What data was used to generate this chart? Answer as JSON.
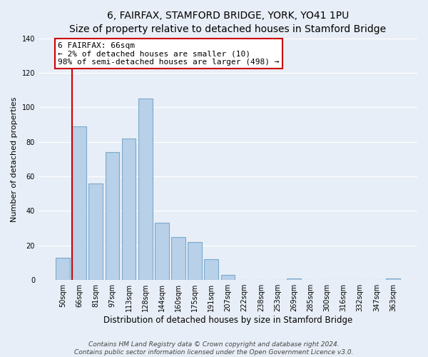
{
  "title": "6, FAIRFAX, STAMFORD BRIDGE, YORK, YO41 1PU",
  "subtitle": "Size of property relative to detached houses in Stamford Bridge",
  "xlabel": "Distribution of detached houses by size in Stamford Bridge",
  "ylabel": "Number of detached properties",
  "bar_labels": [
    "50sqm",
    "66sqm",
    "81sqm",
    "97sqm",
    "113sqm",
    "128sqm",
    "144sqm",
    "160sqm",
    "175sqm",
    "191sqm",
    "207sqm",
    "222sqm",
    "238sqm",
    "253sqm",
    "269sqm",
    "285sqm",
    "300sqm",
    "316sqm",
    "332sqm",
    "347sqm",
    "363sqm"
  ],
  "bar_heights": [
    13,
    89,
    56,
    74,
    82,
    105,
    33,
    25,
    22,
    12,
    3,
    0,
    0,
    0,
    1,
    0,
    0,
    0,
    0,
    0,
    1
  ],
  "bar_color": "#b8d0e8",
  "bar_edge_color": "#7aaace",
  "vline_x": 1,
  "vline_color": "#cc0000",
  "annotation_text": "6 FAIRFAX: 66sqm\n← 2% of detached houses are smaller (10)\n98% of semi-detached houses are larger (498) →",
  "annotation_box_color": "#ffffff",
  "annotation_box_edge": "#cc0000",
  "ylim": [
    0,
    140
  ],
  "yticks": [
    0,
    20,
    40,
    60,
    80,
    100,
    120,
    140
  ],
  "bg_color": "#e8eef7",
  "grid_color": "#ffffff",
  "footer": "Contains HM Land Registry data © Crown copyright and database right 2024.\nContains public sector information licensed under the Open Government Licence v3.0.",
  "title_fontsize": 10,
  "subtitle_fontsize": 9,
  "xlabel_fontsize": 8.5,
  "ylabel_fontsize": 8,
  "tick_fontsize": 7,
  "footer_fontsize": 6.5,
  "ann_fontsize": 8
}
